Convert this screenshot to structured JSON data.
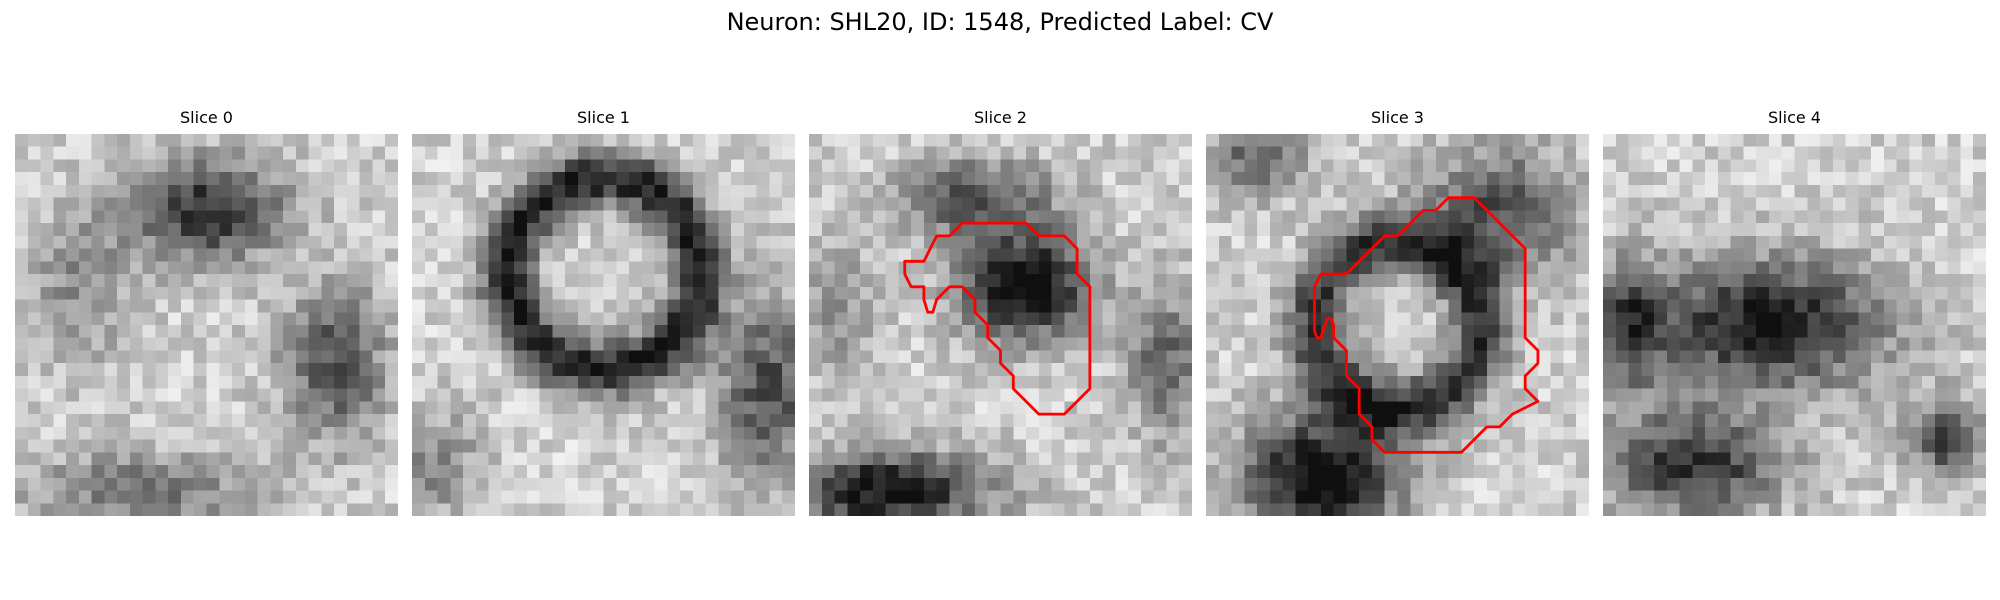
{
  "figure": {
    "title": "Neuron: SHL20, ID: 1548, Predicted Label: CV"
  },
  "panels": [
    {
      "title": "Slice 0",
      "has_contour": false
    },
    {
      "title": "Slice 1",
      "has_contour": false
    },
    {
      "title": "Slice 2",
      "has_contour": true
    },
    {
      "title": "Slice 3",
      "has_contour": true
    },
    {
      "title": "Slice 4",
      "has_contour": false
    }
  ],
  "colors": {
    "contour": "#ff0000",
    "background": "#ffffff"
  },
  "colormap": "grayscale"
}
